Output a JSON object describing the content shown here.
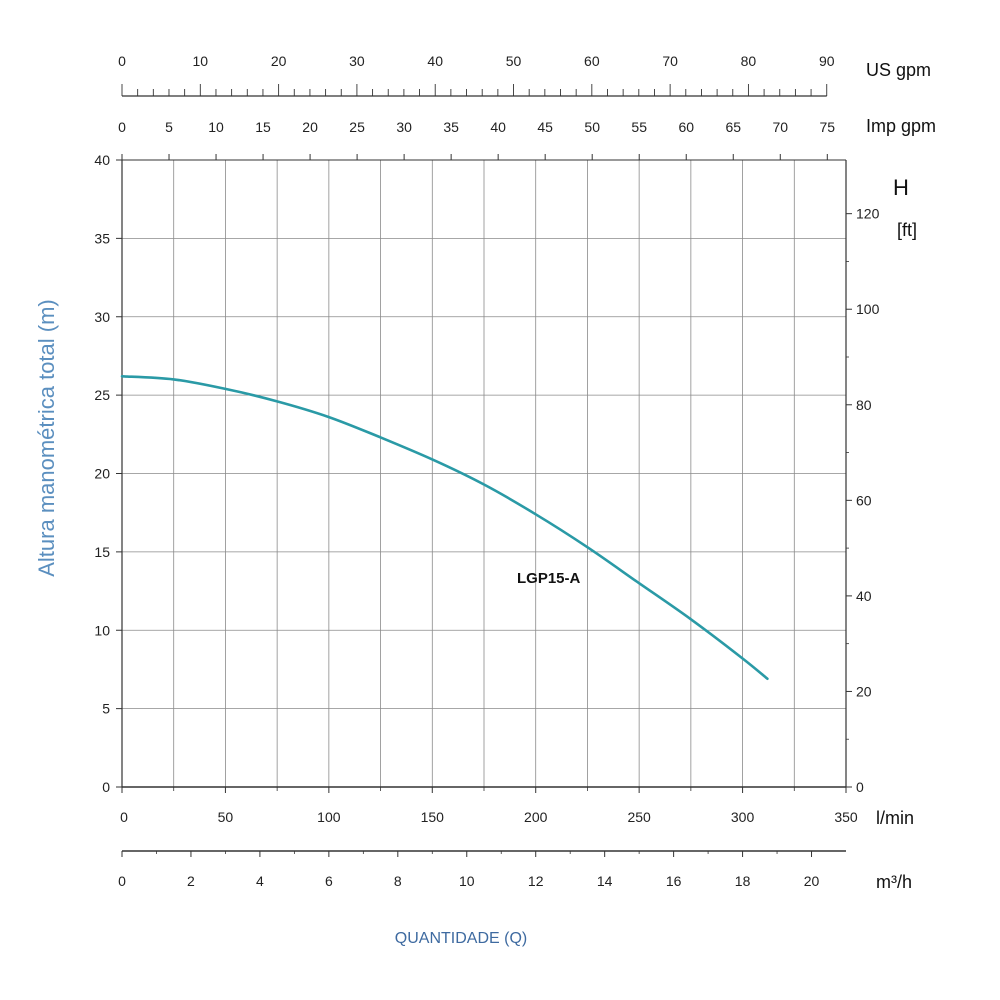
{
  "chart_data": {
    "type": "line",
    "title": "",
    "ylabel": "Altura manométrica total (m)",
    "xlabel": "QUANTIDADE (Q)",
    "x_unit": "l/min",
    "xlim": [
      0,
      350
    ],
    "ylim": [
      0,
      40
    ],
    "grid": true,
    "series": [
      {
        "name": "LGP15-A",
        "x": [
          0,
          25,
          50,
          75,
          100,
          125,
          150,
          175,
          200,
          225,
          250,
          275,
          300,
          312
        ],
        "y": [
          26.2,
          26.0,
          25.4,
          24.6,
          23.6,
          22.3,
          20.9,
          19.3,
          17.4,
          15.3,
          13.0,
          10.7,
          8.2,
          6.9
        ]
      }
    ],
    "axes": {
      "left": {
        "unit": "m",
        "ticks": [
          0,
          5,
          10,
          15,
          20,
          25,
          30,
          35,
          40
        ]
      },
      "right": {
        "unit_top": "H",
        "unit_bottom": "[ft]",
        "ticks": [
          0,
          20,
          40,
          60,
          80,
          100,
          120
        ]
      },
      "bottom_lmin": {
        "unit": "l/min",
        "ticks": [
          0,
          50,
          100,
          150,
          200,
          250,
          300,
          350
        ]
      },
      "bottom_m3h": {
        "unit": "m³/h",
        "ticks": [
          0,
          2,
          4,
          6,
          8,
          10,
          12,
          14,
          16,
          18,
          20
        ]
      },
      "top_usgpm": {
        "unit": "US gpm",
        "ticks": [
          0,
          10,
          20,
          30,
          40,
          50,
          60,
          70,
          80,
          90
        ]
      },
      "top_impgpm": {
        "unit": "Imp gpm",
        "ticks": [
          0,
          5,
          10,
          15,
          20,
          25,
          30,
          35,
          40,
          45,
          50,
          55,
          60,
          65,
          70,
          75
        ]
      }
    },
    "colors": {
      "curve": "#2a9aa6",
      "y_title": "#5b8fbf",
      "x_title": "#3e6aa0",
      "grid": "#8a8a8a",
      "axis": "#333333"
    }
  }
}
